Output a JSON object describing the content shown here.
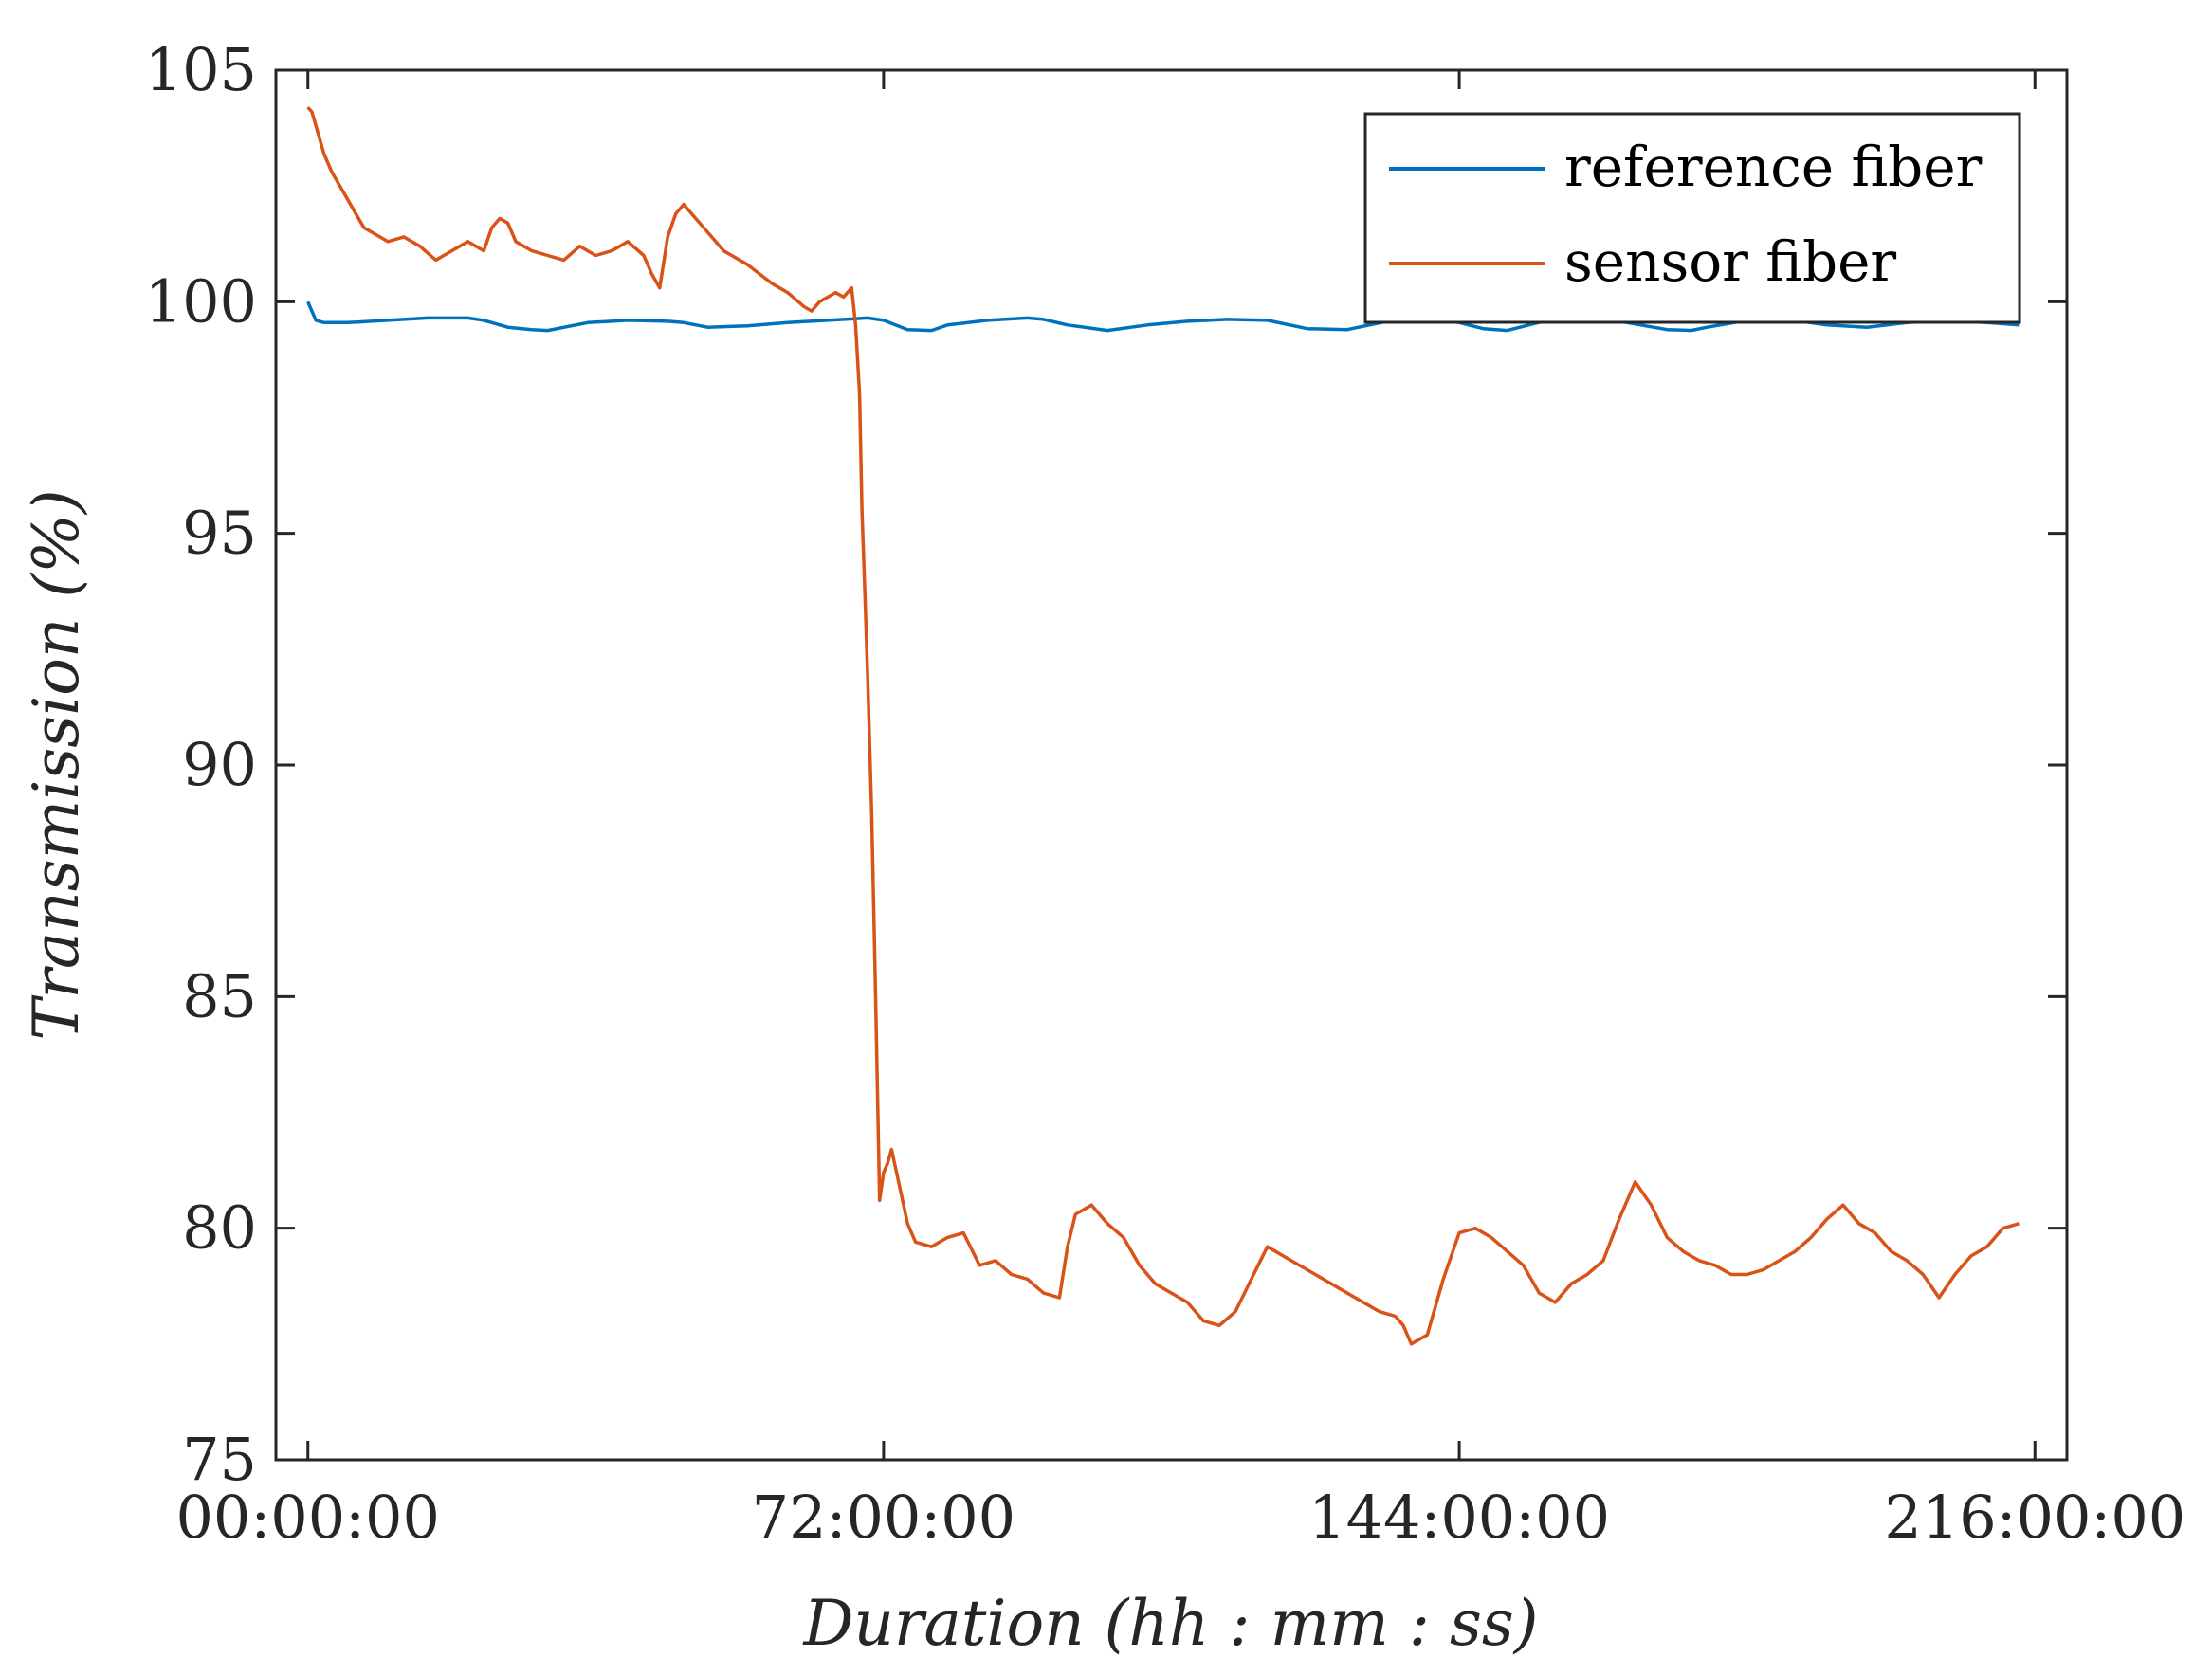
{
  "chart_data": {
    "type": "line",
    "title": "",
    "xlabel": "Duration (hh : mm : ss)",
    "ylabel": "Transmission (%)",
    "xlim": [
      -4,
      220
    ],
    "ylim": [
      75,
      105
    ],
    "x_unit": "hours",
    "xticks": [
      0,
      72,
      144,
      216
    ],
    "xtick_labels": [
      "00:00:00",
      "72:00:00",
      "144:00:00",
      "216:00:00"
    ],
    "yticks": [
      75,
      80,
      85,
      90,
      95,
      100,
      105
    ],
    "ytick_labels": [
      "75",
      "80",
      "85",
      "90",
      "95",
      "100",
      "105"
    ],
    "grid": false,
    "legend_position": "top-right",
    "series": [
      {
        "name": "reference fiber",
        "color": "#0072BD",
        "x": [
          0,
          0.5,
          1,
          2,
          5,
          10,
          15,
          20,
          22,
          25,
          28,
          30,
          35,
          40,
          45,
          47,
          50,
          55,
          60,
          65,
          70,
          72,
          75,
          78,
          80,
          85,
          90,
          92,
          95,
          100,
          105,
          110,
          115,
          120,
          125,
          130,
          135,
          140,
          144,
          147,
          150,
          155,
          160,
          165,
          170,
          173,
          175,
          180,
          185,
          190,
          195,
          200,
          205,
          210,
          214
        ],
        "values": [
          100.0,
          99.8,
          99.6,
          99.55,
          99.55,
          99.6,
          99.65,
          99.65,
          99.6,
          99.45,
          99.4,
          99.38,
          99.55,
          99.6,
          99.58,
          99.55,
          99.45,
          99.48,
          99.55,
          99.6,
          99.65,
          99.6,
          99.4,
          99.38,
          99.5,
          99.6,
          99.65,
          99.62,
          99.5,
          99.38,
          99.5,
          99.58,
          99.62,
          99.6,
          99.42,
          99.4,
          99.58,
          99.65,
          99.55,
          99.42,
          99.38,
          99.6,
          99.68,
          99.55,
          99.4,
          99.38,
          99.45,
          99.6,
          99.62,
          99.5,
          99.45,
          99.55,
          99.6,
          99.55,
          99.5
        ]
      },
      {
        "name": "sensor fiber",
        "color": "#D95319",
        "x": [
          0,
          0.5,
          1,
          2,
          3,
          4,
          5,
          6,
          7,
          8,
          10,
          12,
          14,
          16,
          18,
          20,
          22,
          23,
          24,
          25,
          26,
          28,
          30,
          32,
          34,
          36,
          38,
          40,
          42,
          43,
          44,
          45,
          46,
          47,
          48,
          50,
          52,
          55,
          58,
          60,
          62,
          63,
          64,
          66,
          67,
          68,
          68.5,
          69,
          69.3,
          69.6,
          70,
          70.5,
          71,
          71.5,
          72,
          72.5,
          73,
          74,
          75,
          76,
          78,
          80,
          82,
          84,
          86,
          88,
          90,
          92,
          94,
          95,
          96,
          98,
          100,
          102,
          104,
          106,
          108,
          110,
          112,
          114,
          116,
          118,
          120,
          122,
          124,
          126,
          128,
          130,
          132,
          134,
          136,
          137,
          138,
          140,
          142,
          144,
          146,
          148,
          150,
          152,
          154,
          156,
          158,
          160,
          162,
          164,
          166,
          168,
          170,
          172,
          174,
          176,
          178,
          180,
          182,
          184,
          186,
          188,
          190,
          192,
          194,
          196,
          198,
          200,
          202,
          204,
          206,
          208,
          210,
          212,
          214
        ],
        "values": [
          104.2,
          104.1,
          103.8,
          103.2,
          102.8,
          102.5,
          102.2,
          101.9,
          101.6,
          101.5,
          101.3,
          101.4,
          101.2,
          100.9,
          101.1,
          101.3,
          101.1,
          101.6,
          101.8,
          101.7,
          101.3,
          101.1,
          101.0,
          100.9,
          101.2,
          101.0,
          101.1,
          101.3,
          101.0,
          100.6,
          100.3,
          101.4,
          101.9,
          102.1,
          101.9,
          101.5,
          101.1,
          100.8,
          100.4,
          100.2,
          99.9,
          99.8,
          100.0,
          100.2,
          100.1,
          100.3,
          99.5,
          98.0,
          95.5,
          94.0,
          92.0,
          89.0,
          85.0,
          80.6,
          81.2,
          81.4,
          81.7,
          80.9,
          80.1,
          79.7,
          79.6,
          79.8,
          79.9,
          79.2,
          79.3,
          79.0,
          78.9,
          78.6,
          78.5,
          79.6,
          80.3,
          80.5,
          80.1,
          79.8,
          79.2,
          78.8,
          78.6,
          78.4,
          78.0,
          77.9,
          78.2,
          78.9,
          79.6,
          79.4,
          79.2,
          79.0,
          78.8,
          78.6,
          78.4,
          78.2,
          78.1,
          77.9,
          77.5,
          77.7,
          78.9,
          79.9,
          80.0,
          79.8,
          79.5,
          79.2,
          78.6,
          78.4,
          78.8,
          79.0,
          79.3,
          80.2,
          81.0,
          80.5,
          79.8,
          79.5,
          79.3,
          79.2,
          79.0,
          79.0,
          79.1,
          79.3,
          79.5,
          79.8,
          80.2,
          80.5,
          80.1,
          79.9,
          79.5,
          79.3,
          79.0,
          78.5,
          79.0,
          79.4,
          79.6,
          80.0,
          80.1
        ]
      }
    ]
  }
}
